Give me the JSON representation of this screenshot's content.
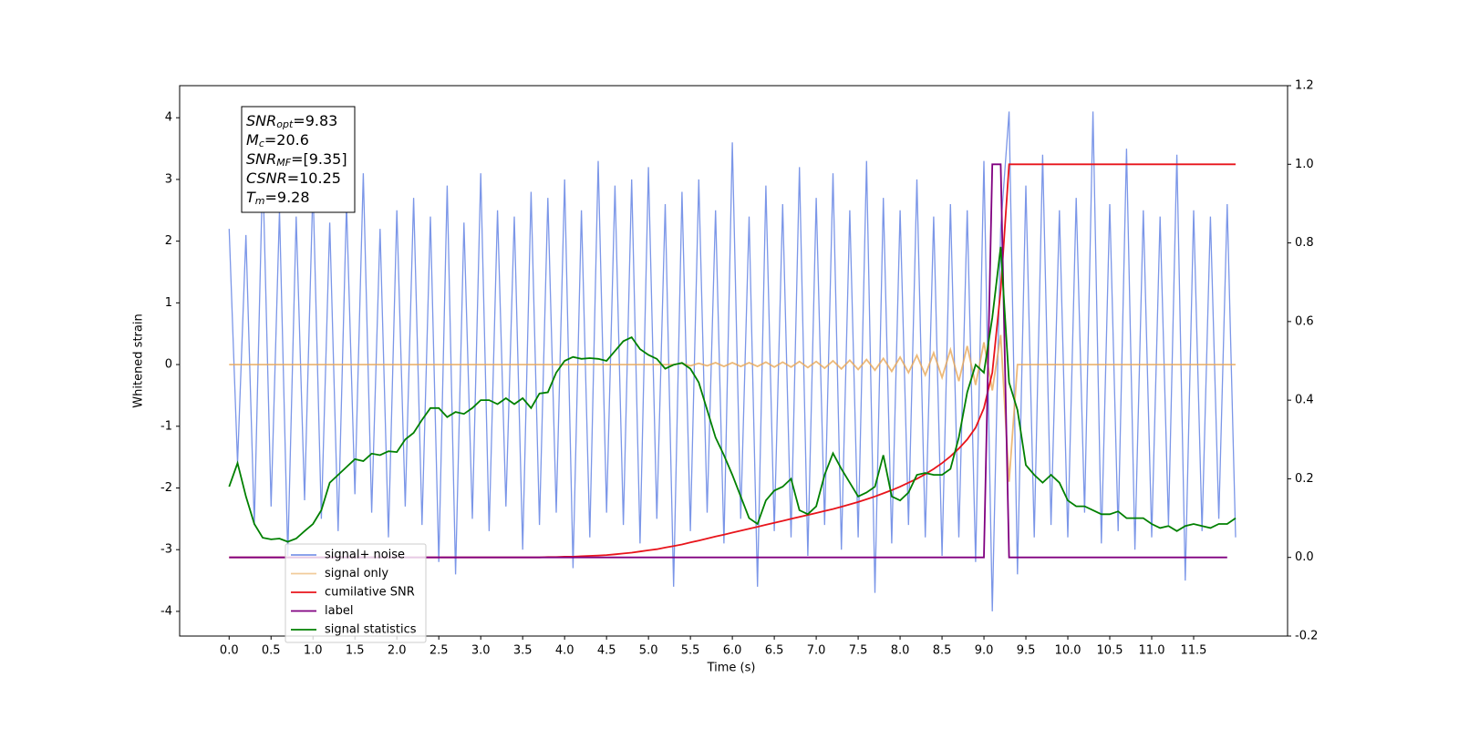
{
  "chart_data": {
    "type": "line",
    "xlabel": "Time (s)",
    "ylabel": "Whitened strain",
    "xlim": [
      -0.59,
      12.62
    ],
    "ylim": [
      -4.4,
      4.52
    ],
    "y2lim": [
      -0.2,
      1.2
    ],
    "xticks": [
      {
        "value": 0,
        "label": "0.0"
      },
      0.5,
      {
        "value": 1,
        "label": "1.0"
      },
      1.5,
      {
        "value": 2,
        "label": "2.0"
      },
      2.5,
      {
        "value": 3,
        "label": "3.0"
      },
      3.5,
      {
        "value": 4,
        "label": "4.0"
      },
      4.5,
      {
        "value": 5,
        "label": "5.0"
      },
      5.5,
      {
        "value": 6,
        "label": "6.0"
      },
      6.5,
      {
        "value": 7,
        "label": "7.0"
      },
      7.5,
      {
        "value": 8,
        "label": "8.0"
      },
      8.5,
      {
        "value": 9,
        "label": "9.0"
      },
      9.5,
      {
        "value": 10,
        "label": "10.0"
      },
      10.5,
      {
        "value": 11,
        "label": "11.0"
      },
      11.5
    ],
    "yticks": [
      -4,
      -3,
      -2,
      -1,
      0,
      1,
      2,
      3,
      4
    ],
    "y2ticks": [
      -0.2,
      {
        "value": 0,
        "label": "0.0"
      },
      0.2,
      0.4,
      0.6,
      0.8,
      {
        "value": 1,
        "label": "1.0"
      },
      1.2
    ],
    "legend": "lower left",
    "annotation": [
      {
        "base": "SNR",
        "sub": "opt",
        "text": "=9.83"
      },
      {
        "base": "M",
        "sub": "c",
        "text": "=20.6"
      },
      {
        "base": "SNR",
        "sub": "MF",
        "text": "=[9.35]"
      },
      {
        "base": "CSNR",
        "text": "=10.25"
      },
      {
        "base": "T",
        "sub": "m",
        "text": "=9.28"
      }
    ],
    "x": [
      0,
      0.1,
      0.2,
      0.3,
      0.4,
      0.5,
      0.6,
      0.7,
      0.8,
      0.9,
      1,
      1.1,
      1.2,
      1.3,
      1.4,
      1.5,
      1.6,
      1.7,
      1.8,
      1.9,
      2,
      2.1,
      2.2,
      2.3,
      2.4,
      2.5,
      2.6,
      2.7,
      2.8,
      2.9,
      3,
      3.1,
      3.2,
      3.3,
      3.4,
      3.5,
      3.6,
      3.7,
      3.8,
      3.9,
      4,
      4.1,
      4.2,
      4.3,
      4.4,
      4.5,
      4.6,
      4.7,
      4.8,
      4.9,
      5,
      5.1,
      5.2,
      5.3,
      5.4,
      5.5,
      5.6,
      5.7,
      5.8,
      5.9,
      6,
      6.1,
      6.2,
      6.3,
      6.4,
      6.5,
      6.6,
      6.7,
      6.8,
      6.9,
      7,
      7.1,
      7.2,
      7.3,
      7.4,
      7.5,
      7.6,
      7.7,
      7.8,
      7.9,
      8,
      8.1,
      8.2,
      8.3,
      8.4,
      8.5,
      8.6,
      8.7,
      8.8,
      8.9,
      9,
      9.1,
      9.2,
      9.3,
      9.4,
      9.5,
      9.6,
      9.7,
      9.8,
      9.9,
      10,
      10.1,
      10.2,
      10.3,
      10.4,
      10.5,
      10.6,
      10.7,
      10.8,
      10.9,
      11,
      11.1,
      11.2,
      11.3,
      11.4,
      11.5,
      11.6,
      11.7,
      11.8,
      11.9,
      12
    ],
    "series": [
      {
        "name": "signal+ noise",
        "color": "#7b96e8",
        "values": [
          2.2,
          -1.6,
          2.1,
          -2.6,
          3.2,
          -2.3,
          2.5,
          -3.1,
          2.4,
          -2.2,
          2.9,
          -2.5,
          2.3,
          -2.7,
          2.6,
          -2.1,
          3.1,
          -2.4,
          2.2,
          -2.8,
          2.5,
          -2.3,
          2.7,
          -2.6,
          2.4,
          -3.2,
          2.9,
          -3.4,
          2.3,
          -2.5,
          3.1,
          -2.7,
          2.5,
          -2.3,
          2.4,
          -3.0,
          2.8,
          -2.6,
          2.7,
          -2.4,
          3.0,
          -3.3,
          2.5,
          -2.8,
          3.3,
          -2.4,
          2.9,
          -2.6,
          3.0,
          -2.9,
          3.2,
          -2.5,
          2.6,
          -3.6,
          2.8,
          -2.7,
          3.0,
          -2.4,
          2.5,
          -2.9,
          3.6,
          -2.5,
          2.4,
          -3.6,
          2.9,
          -2.7,
          2.6,
          -2.8,
          3.2,
          -3.1,
          2.7,
          -2.6,
          3.1,
          -3.0,
          2.5,
          -2.8,
          3.3,
          -3.7,
          2.7,
          -2.9,
          2.5,
          -2.6,
          3.0,
          -2.8,
          2.4,
          -3.1,
          2.6,
          -2.8,
          2.5,
          -3.2,
          3.3,
          -4.0,
          2.2,
          4.1,
          -3.4,
          2.9,
          -2.8,
          3.4,
          -2.6,
          2.5,
          -2.8,
          2.7,
          -2.4,
          4.1,
          -2.9,
          2.6,
          -2.7,
          3.5,
          -3.0,
          2.5,
          -2.8,
          2.4,
          -2.6,
          3.4,
          -3.5,
          2.5,
          -2.7,
          2.4,
          -2.5,
          2.6,
          -2.8
        ]
      },
      {
        "name": "signal only",
        "color": "#e8a857",
        "values": [
          0,
          0,
          0,
          0,
          0,
          0,
          0,
          0,
          0,
          0,
          0,
          0,
          0,
          0,
          0,
          0,
          0,
          0,
          0,
          0,
          0,
          0,
          0,
          0,
          0,
          0,
          0,
          0,
          0,
          0,
          0,
          0,
          0,
          0,
          0,
          0,
          0,
          0,
          0,
          0,
          0,
          0,
          0,
          0,
          0,
          0,
          0,
          0,
          0,
          0,
          0,
          0,
          0,
          0,
          0.02,
          -0.02,
          0.02,
          -0.02,
          0.03,
          -0.03,
          0.03,
          -0.03,
          0.03,
          -0.03,
          0.04,
          -0.04,
          0.04,
          -0.04,
          0.05,
          -0.05,
          0.05,
          -0.06,
          0.06,
          -0.07,
          0.07,
          -0.08,
          0.08,
          -0.09,
          0.1,
          -0.11,
          0.12,
          -0.13,
          0.15,
          -0.17,
          0.19,
          -0.21,
          0.24,
          -0.27,
          0.3,
          -0.33,
          0.36,
          -0.42,
          0.48,
          -1.9,
          0,
          0,
          0,
          0,
          0,
          0,
          0,
          0,
          0,
          0,
          0,
          0,
          0,
          0,
          0,
          0,
          0,
          0,
          0,
          0,
          0,
          0,
          0,
          0,
          0,
          0,
          0
        ]
      },
      {
        "name": "cumilative SNR",
        "color": "#e8141b",
        "axis": "y2",
        "values": [
          0,
          0,
          0,
          0,
          0,
          0,
          0,
          0,
          0,
          0,
          0,
          0,
          0,
          0,
          0,
          0,
          0,
          0,
          0,
          0,
          0,
          0,
          0,
          0,
          0,
          0,
          0,
          0,
          0,
          0,
          0,
          0,
          0,
          0,
          0,
          0,
          0,
          0,
          0.001,
          0.001,
          0.002,
          0.002,
          0.003,
          0.004,
          0.005,
          0.006,
          0.008,
          0.01,
          0.012,
          0.015,
          0.018,
          0.021,
          0.025,
          0.029,
          0.033,
          0.038,
          0.043,
          0.048,
          0.053,
          0.058,
          0.063,
          0.068,
          0.073,
          0.078,
          0.083,
          0.088,
          0.093,
          0.098,
          0.103,
          0.108,
          0.113,
          0.118,
          0.123,
          0.129,
          0.135,
          0.141,
          0.148,
          0.155,
          0.163,
          0.171,
          0.18,
          0.19,
          0.2,
          0.212,
          0.225,
          0.24,
          0.257,
          0.277,
          0.3,
          0.33,
          0.38,
          0.47,
          0.68,
          1,
          1,
          1,
          1,
          1,
          1,
          1,
          1,
          1,
          1,
          1,
          1,
          1,
          1,
          1,
          1,
          1,
          1,
          1,
          1,
          1,
          1,
          1,
          1,
          1,
          1,
          1,
          1
        ]
      },
      {
        "name": "label",
        "color": "#800080",
        "axis": "y2",
        "values": [
          0,
          0,
          0,
          0,
          0,
          0,
          0,
          0,
          0,
          0,
          0,
          0,
          0,
          0,
          0,
          0,
          0,
          0,
          0,
          0,
          0,
          0,
          0,
          0,
          0,
          0,
          0,
          0,
          0,
          0,
          0,
          0,
          0,
          0,
          0,
          0,
          0,
          0,
          0,
          0,
          0,
          0,
          0,
          0,
          0,
          0,
          0,
          0,
          0,
          0,
          0,
          0,
          0,
          0,
          0,
          0,
          0,
          0,
          0,
          0,
          0,
          0,
          0,
          0,
          0,
          0,
          0,
          0,
          0,
          0,
          0,
          0,
          0,
          0,
          0,
          0,
          0,
          0,
          0,
          0,
          0,
          0,
          0,
          0,
          0,
          0,
          0,
          0,
          0,
          0,
          0,
          1,
          1,
          0,
          0,
          0,
          0,
          0,
          0,
          0,
          0,
          0,
          0,
          0,
          0,
          0,
          0,
          0,
          0,
          0,
          0,
          0,
          0,
          0,
          0,
          0,
          0,
          0,
          0,
          0,
          null
        ]
      },
      {
        "name": "signal statistics",
        "color": "#008000",
        "axis": "y2",
        "values": [
          0.18,
          0.24,
          0.155,
          0.085,
          0.05,
          0.046,
          0.048,
          0.04,
          0.048,
          0.067,
          0.085,
          0.12,
          0.19,
          0.21,
          0.23,
          0.25,
          0.245,
          0.264,
          0.26,
          0.27,
          0.268,
          0.3,
          0.317,
          0.35,
          0.38,
          0.38,
          0.357,
          0.37,
          0.365,
          0.38,
          0.4,
          0.4,
          0.39,
          0.405,
          0.39,
          0.405,
          0.38,
          0.417,
          0.42,
          0.47,
          0.5,
          0.51,
          0.505,
          0.507,
          0.505,
          0.5,
          0.525,
          0.55,
          0.56,
          0.53,
          0.515,
          0.505,
          0.48,
          0.49,
          0.495,
          0.48,
          0.445,
          0.375,
          0.305,
          0.26,
          0.21,
          0.155,
          0.1,
          0.085,
          0.145,
          0.17,
          0.18,
          0.2,
          0.12,
          0.11,
          0.13,
          0.21,
          0.265,
          0.225,
          0.19,
          0.155,
          0.165,
          0.18,
          0.26,
          0.155,
          0.145,
          0.165,
          0.21,
          0.215,
          0.21,
          0.21,
          0.225,
          0.305,
          0.42,
          0.49,
          0.47,
          0.61,
          0.79,
          0.445,
          0.375,
          0.235,
          0.21,
          0.19,
          0.21,
          0.19,
          0.145,
          0.13,
          0.13,
          0.12,
          0.11,
          0.11,
          0.117,
          0.1,
          0.1,
          0.1,
          0.085,
          0.075,
          0.08,
          0.067,
          0.08,
          0.085,
          0.08,
          0.075,
          0.085,
          0.085,
          0.1
        ]
      }
    ]
  }
}
